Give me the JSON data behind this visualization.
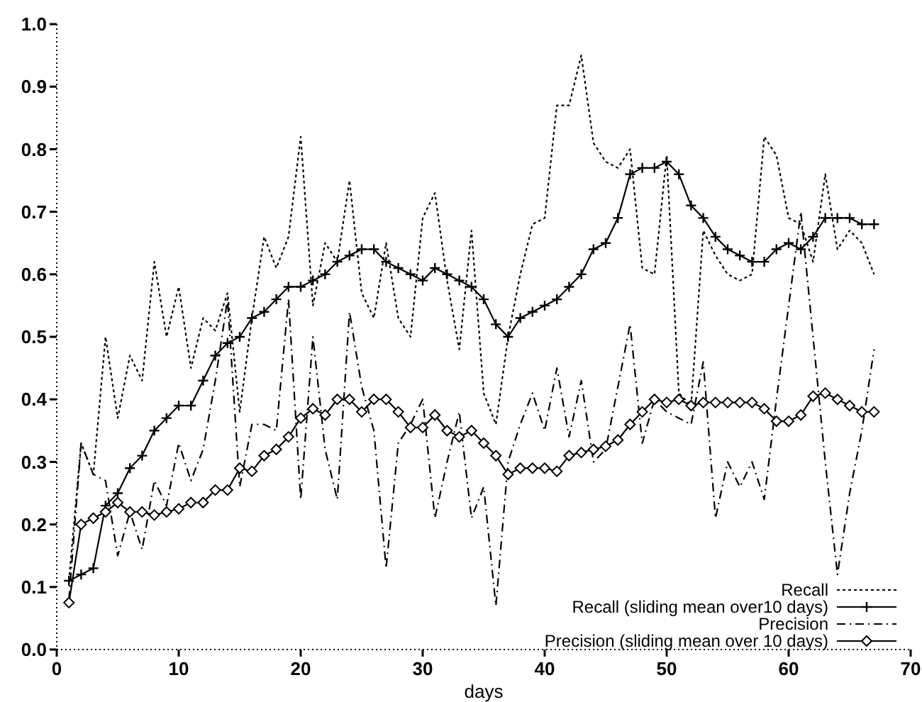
{
  "chart_data": {
    "type": "line",
    "xlabel": "days",
    "xlim": [
      0,
      70
    ],
    "xticks": [
      0,
      10,
      20,
      30,
      40,
      50,
      60,
      70
    ],
    "ylim": [
      0,
      1
    ],
    "yticks": [
      {
        "value": 0,
        "label": "0.0"
      },
      {
        "value": 0.1,
        "label": "0.1"
      },
      {
        "value": 0.2,
        "label": "0.2"
      },
      {
        "value": 0.3,
        "label": "0.3"
      },
      {
        "value": 0.4,
        "label": "0.4"
      },
      {
        "value": 0.5,
        "label": "0.5"
      },
      {
        "value": 0.6,
        "label": "0.6"
      },
      {
        "value": 0.7,
        "label": "0.7"
      },
      {
        "value": 0.8,
        "label": "0.8"
      },
      {
        "value": 0.9,
        "label": "0.9"
      },
      {
        "value": 1,
        "label": "1.0"
      }
    ],
    "x": [
      1,
      2,
      3,
      4,
      5,
      6,
      7,
      8,
      9,
      10,
      11,
      12,
      13,
      14,
      15,
      16,
      17,
      18,
      19,
      20,
      21,
      22,
      23,
      24,
      25,
      26,
      27,
      28,
      29,
      30,
      31,
      32,
      33,
      34,
      35,
      36,
      37,
      38,
      39,
      40,
      41,
      42,
      43,
      44,
      45,
      46,
      47,
      48,
      49,
      50,
      51,
      52,
      53,
      54,
      55,
      56,
      57,
      58,
      59,
      60,
      61,
      62,
      63,
      64,
      65,
      66,
      67
    ],
    "grid": false,
    "legend": "bottom right",
    "series": [
      {
        "name": "Recall",
        "color": "#000000",
        "line_style": "dotted",
        "marker": "none",
        "values": [
          0.11,
          0.33,
          0.28,
          0.5,
          0.37,
          0.47,
          0.43,
          0.62,
          0.5,
          0.58,
          0.45,
          0.53,
          0.51,
          0.57,
          0.38,
          0.53,
          0.66,
          0.61,
          0.66,
          0.82,
          0.55,
          0.65,
          0.62,
          0.75,
          0.57,
          0.53,
          0.65,
          0.53,
          0.5,
          0.69,
          0.73,
          0.59,
          0.48,
          0.67,
          0.41,
          0.36,
          0.5,
          0.6,
          0.68,
          0.69,
          0.87,
          0.87,
          0.95,
          0.81,
          0.78,
          0.77,
          0.8,
          0.61,
          0.6,
          0.79,
          0.41,
          0.39,
          0.67,
          0.63,
          0.6,
          0.59,
          0.6,
          0.82,
          0.79,
          0.69,
          0.68,
          0.62,
          0.76,
          0.64,
          0.67,
          0.65,
          0.6
        ]
      },
      {
        "name": "Recall (sliding mean over10 days)",
        "color": "#000000",
        "line_style": "solid",
        "marker": "cross",
        "values": [
          0.11,
          0.12,
          0.13,
          0.23,
          0.25,
          0.29,
          0.31,
          0.35,
          0.37,
          0.39,
          0.39,
          0.43,
          0.47,
          0.49,
          0.5,
          0.53,
          0.54,
          0.56,
          0.58,
          0.58,
          0.59,
          0.6,
          0.62,
          0.63,
          0.64,
          0.64,
          0.62,
          0.61,
          0.6,
          0.59,
          0.61,
          0.6,
          0.59,
          0.58,
          0.56,
          0.52,
          0.5,
          0.53,
          0.54,
          0.55,
          0.56,
          0.58,
          0.6,
          0.64,
          0.65,
          0.69,
          0.76,
          0.77,
          0.77,
          0.78,
          0.76,
          0.71,
          0.69,
          0.66,
          0.64,
          0.63,
          0.62,
          0.62,
          0.64,
          0.65,
          0.64,
          0.66,
          0.69,
          0.69,
          0.69,
          0.68,
          0.68
        ]
      },
      {
        "name": "Precision",
        "color": "#000000",
        "line_style": "dashed",
        "marker": "none",
        "values": [
          0.08,
          0.33,
          0.28,
          0.27,
          0.15,
          0.22,
          0.16,
          0.27,
          0.23,
          0.33,
          0.27,
          0.32,
          0.43,
          0.56,
          0.26,
          0.36,
          0.36,
          0.35,
          0.56,
          0.24,
          0.5,
          0.32,
          0.24,
          0.54,
          0.42,
          0.35,
          0.13,
          0.33,
          0.36,
          0.4,
          0.21,
          0.3,
          0.38,
          0.21,
          0.26,
          0.07,
          0.3,
          0.36,
          0.41,
          0.35,
          0.45,
          0.34,
          0.43,
          0.3,
          0.32,
          0.42,
          0.52,
          0.33,
          0.4,
          0.38,
          0.37,
          0.36,
          0.46,
          0.21,
          0.3,
          0.26,
          0.3,
          0.24,
          0.4,
          0.55,
          0.7,
          0.5,
          0.3,
          0.12,
          0.25,
          0.35,
          0.48
        ]
      },
      {
        "name": "Precision (sliding mean over 10 days)",
        "color": "#000000",
        "line_style": "solid",
        "marker": "diamond",
        "values": [
          0.075,
          0.2,
          0.21,
          0.22,
          0.235,
          0.22,
          0.22,
          0.215,
          0.22,
          0.225,
          0.235,
          0.235,
          0.255,
          0.255,
          0.29,
          0.285,
          0.31,
          0.32,
          0.34,
          0.37,
          0.385,
          0.375,
          0.4,
          0.4,
          0.38,
          0.4,
          0.4,
          0.38,
          0.355,
          0.355,
          0.375,
          0.35,
          0.34,
          0.35,
          0.33,
          0.31,
          0.28,
          0.29,
          0.29,
          0.29,
          0.285,
          0.31,
          0.315,
          0.32,
          0.325,
          0.335,
          0.36,
          0.38,
          0.4,
          0.395,
          0.4,
          0.39,
          0.395,
          0.395,
          0.395,
          0.395,
          0.395,
          0.385,
          0.365,
          0.365,
          0.375,
          0.405,
          0.41,
          0.4,
          0.39,
          0.38,
          0.38
        ]
      }
    ]
  }
}
